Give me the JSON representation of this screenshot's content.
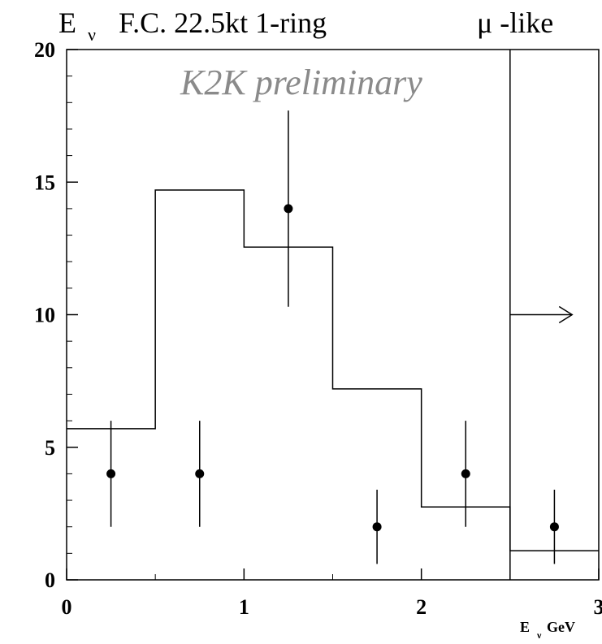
{
  "chart_data": {
    "type": "histogram",
    "title_left": "E",
    "title_left_sub": "ν",
    "title_rest": "F.C. 22.5kt 1-ring",
    "title_right": "μ -like",
    "annotation": "K2K preliminary",
    "xlabel_main": "E",
    "xlabel_sub": "ν",
    "xlabel_unit": "GeV",
    "xlim": [
      0,
      3
    ],
    "ylim": [
      0,
      20
    ],
    "x_ticks": [
      {
        "value": 0,
        "label": "0"
      },
      {
        "value": 1,
        "label": "1"
      },
      {
        "value": 2,
        "label": "2"
      },
      {
        "value": 3,
        "label": "3"
      }
    ],
    "y_ticks": [
      {
        "value": 0,
        "label": "0"
      },
      {
        "value": 5,
        "label": "5"
      },
      {
        "value": 10,
        "label": "10"
      },
      {
        "value": 15,
        "label": "15"
      },
      {
        "value": 20,
        "label": "20"
      }
    ],
    "bin_edges": [
      0,
      0.5,
      1.0,
      1.5,
      2.0,
      2.5,
      3.0
    ],
    "expectation": [
      5.7,
      14.7,
      12.55,
      7.2,
      2.75,
      1.1
    ],
    "data_points": [
      {
        "x": 0.25,
        "y": 4,
        "y_low": 2,
        "y_high": 6
      },
      {
        "x": 0.75,
        "y": 4,
        "y_low": 2,
        "y_high": 6
      },
      {
        "x": 1.25,
        "y": 14,
        "y_low": 10.3,
        "y_high": 17.7
      },
      {
        "x": 1.75,
        "y": 2,
        "y_low": 0.6,
        "y_high": 3.4
      },
      {
        "x": 2.25,
        "y": 4,
        "y_low": 2,
        "y_high": 6
      },
      {
        "x": 2.75,
        "y": 2,
        "y_low": 0.6,
        "y_high": 3.4
      }
    ],
    "overflow_line_x": 2.5,
    "overflow_arrow": {
      "x_from": 2.5,
      "x_to": 2.85,
      "y": 10
    },
    "grid": false,
    "legend": "none"
  }
}
